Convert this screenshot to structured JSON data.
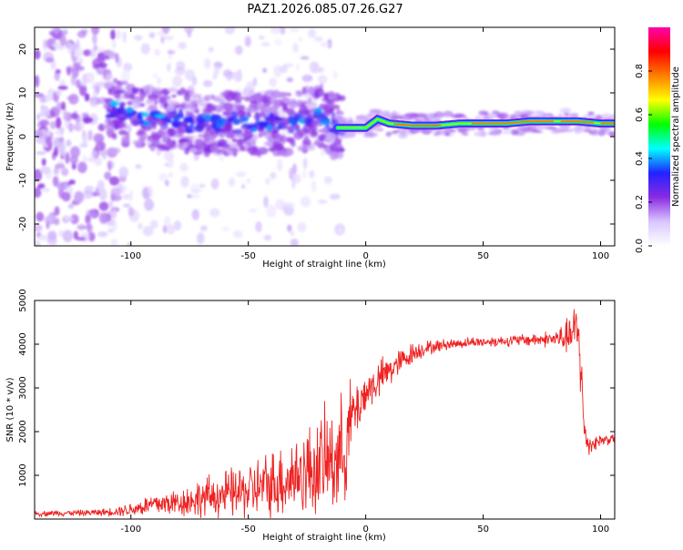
{
  "chart_data": [
    {
      "type": "heatmap",
      "title": "PAZ1.2026.085.07.26.G27",
      "xlabel": "Height of straight line (km)",
      "ylabel": "Frequency (Hz)",
      "xlim": [
        -141,
        106
      ],
      "ylim": [
        -25,
        25
      ],
      "x_ticks": [
        -100,
        -50,
        0,
        50,
        100
      ],
      "y_ticks": [
        20,
        10,
        0,
        -10,
        -20
      ],
      "colorbar": {
        "label": "Normalized spectral amplitude",
        "range": [
          0,
          1
        ],
        "ticks": [
          "0.0",
          "0.2",
          "0.4",
          "0.6",
          "0.8"
        ],
        "colors": [
          "#ffffff",
          "#d9c6ff",
          "#8a2be2",
          "#2222ff",
          "#00ffff",
          "#00ff00",
          "#ffff00",
          "#ff7f00",
          "#ff0000",
          "#ff00aa"
        ]
      },
      "ridge": {
        "x": [
          -110,
          -100,
          -90,
          -80,
          -70,
          -60,
          -50,
          -40,
          -30,
          -20,
          -12,
          -5,
          0,
          5,
          10,
          20,
          30,
          40,
          50,
          60,
          70,
          80,
          90,
          100,
          106
        ],
        "y": [
          7,
          5,
          4,
          4,
          3,
          3,
          3,
          3,
          3,
          5,
          2,
          2,
          2,
          4,
          3,
          2.5,
          2.5,
          3,
          3,
          3,
          3.5,
          3.5,
          3.5,
          3,
          3
        ]
      }
    },
    {
      "type": "line",
      "title": "",
      "xlabel": "Height of straight line (km)",
      "ylabel": "SNR (10 * v/v)",
      "xlim": [
        -141,
        106
      ],
      "ylim": [
        0,
        5000
      ],
      "x_ticks": [
        -100,
        -50,
        0,
        50,
        100
      ],
      "y_ticks": [
        1000,
        2000,
        3000,
        4000,
        5000
      ],
      "color": "#ee2222",
      "series": [
        {
          "name": "SNR",
          "x": [
            -141,
            -130,
            -120,
            -110,
            -100,
            -95,
            -90,
            -85,
            -80,
            -75,
            -70,
            -65,
            -60,
            -55,
            -50,
            -45,
            -40,
            -35,
            -30,
            -25,
            -20,
            -15,
            -10,
            -8,
            -6,
            -4,
            -2,
            0,
            5,
            10,
            15,
            20,
            25,
            30,
            35,
            40,
            45,
            50,
            60,
            70,
            80,
            85,
            88,
            90,
            91,
            92,
            93,
            95,
            100,
            106
          ],
          "mean": [
            120,
            140,
            140,
            160,
            220,
            280,
            340,
            360,
            380,
            420,
            480,
            520,
            560,
            600,
            650,
            720,
            800,
            900,
            1000,
            1100,
            1200,
            1350,
            1500,
            1900,
            2300,
            2500,
            2700,
            2900,
            3150,
            3400,
            3600,
            3800,
            3900,
            3950,
            4000,
            4020,
            4050,
            4050,
            4080,
            4100,
            4120,
            4150,
            4200,
            4300,
            4100,
            3000,
            2000,
            1700,
            1800,
            1850
          ],
          "noise": [
            60,
            70,
            70,
            90,
            160,
            220,
            280,
            300,
            330,
            380,
            450,
            500,
            550,
            600,
            650,
            720,
            800,
            900,
            950,
            1050,
            1150,
            1250,
            1300,
            1200,
            900,
            700,
            600,
            500,
            450,
            400,
            300,
            250,
            180,
            150,
            130,
            120,
            120,
            120,
            130,
            150,
            200,
            350,
            600,
            700,
            900,
            800,
            500,
            250,
            150,
            120
          ]
        }
      ]
    }
  ]
}
